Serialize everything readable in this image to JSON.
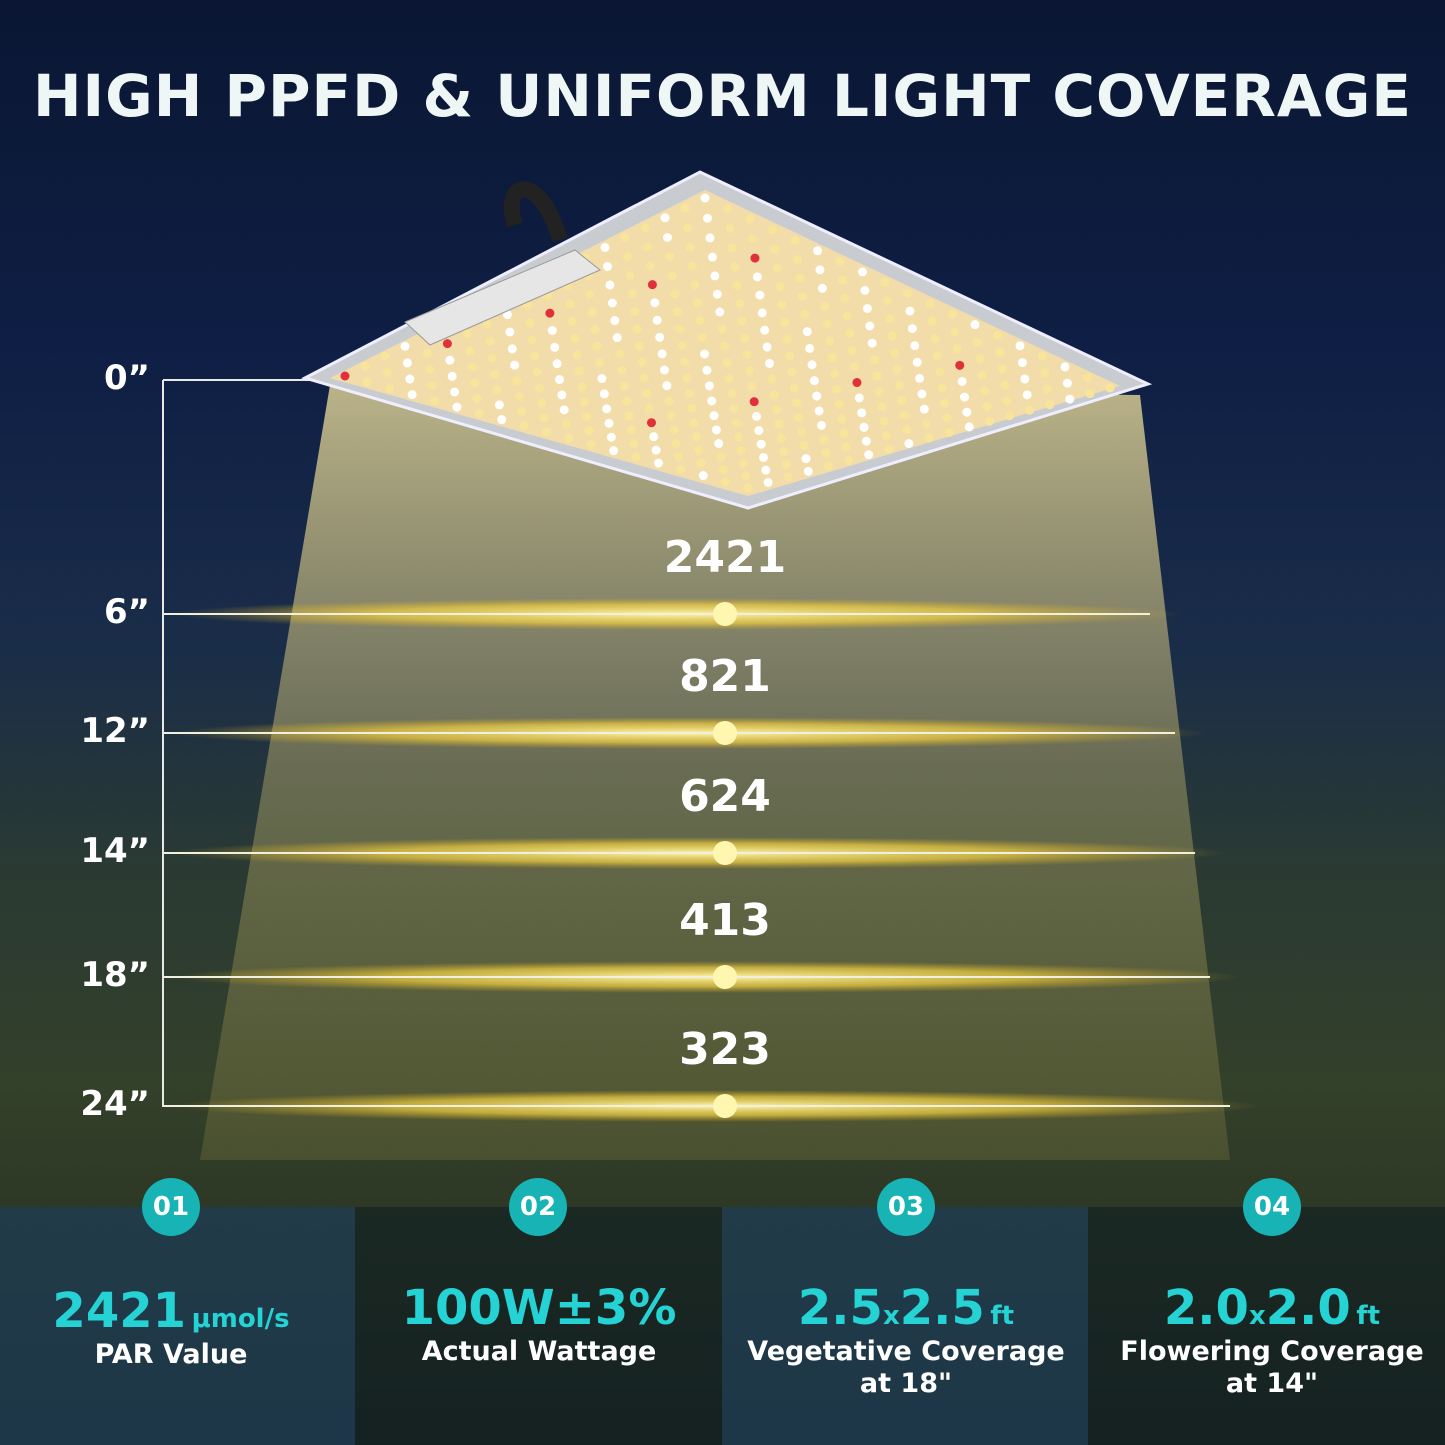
{
  "title": "HIGH PPFD & UNIFORM LIGHT COVERAGE",
  "origin_label": "0”",
  "levels": [
    {
      "depth": "6”",
      "ppfd": "2421"
    },
    {
      "depth": "12”",
      "ppfd": "821"
    },
    {
      "depth": "14”",
      "ppfd": "624"
    },
    {
      "depth": "18”",
      "ppfd": "413"
    },
    {
      "depth": "24”",
      "ppfd": "323"
    }
  ],
  "features": [
    {
      "num": "01",
      "value": "2421",
      "unit": "μmol/s",
      "label": "PAR Value",
      "sub": ""
    },
    {
      "num": "02",
      "value": "100W±3%",
      "unit": "",
      "label": "Actual Wattage",
      "sub": ""
    },
    {
      "num": "03",
      "value": "2.5",
      "x": "x",
      "value2": "2.5",
      "unit": "ft",
      "label": "Vegetative Coverage",
      "sub": "at 18\""
    },
    {
      "num": "04",
      "value": "2.0",
      "x": "x",
      "value2": "2.0",
      "unit": "ft",
      "label": "Flowering Coverage",
      "sub": "at 14\""
    }
  ],
  "colors": {
    "accent": "#25d3d4",
    "badge": "#17b3b5",
    "light": "#f5d86a"
  }
}
